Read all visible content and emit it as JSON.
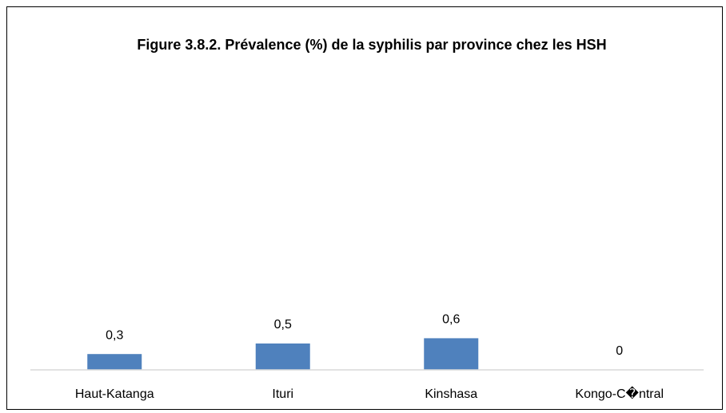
{
  "chart_data": {
    "type": "bar",
    "title": "Figure 3.8.2. Prévalence (%) de la syphilis par province chez les HSH",
    "categories": [
      "Haut-Katanga",
      "Ituri",
      "Kinshasa",
      "Kongo-C�ntral"
    ],
    "values": [
      0.3,
      0.5,
      0.6,
      0
    ],
    "value_labels": [
      "0,3",
      "0,5",
      "0,6",
      "0"
    ],
    "color": "#4f81bd",
    "ylim": [
      0,
      5
    ]
  }
}
